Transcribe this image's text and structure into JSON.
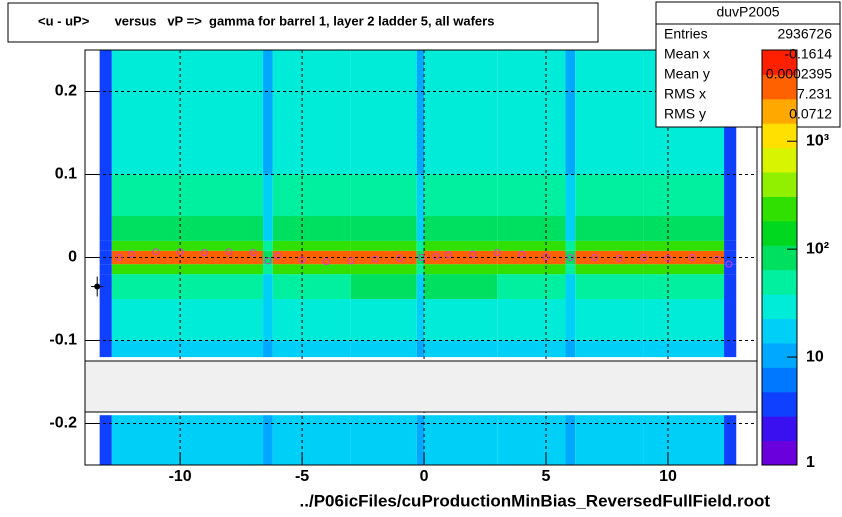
{
  "chart_data": {
    "type": "heatmap",
    "title": "<u - uP>       versus   vP =>  gamma for barrel 1, layer 2 ladder 5, all wafers",
    "x_label": "../P06icFiles/cuProductionMinBias_ReversedFullField.root",
    "xlim": [
      -13.9,
      13.65
    ],
    "ylim": [
      -0.25,
      0.25
    ],
    "xticks": [
      -10,
      -5,
      0,
      5,
      10
    ],
    "yticks": [
      -0.2,
      -0.1,
      0,
      0.1,
      0.2
    ],
    "grid": true,
    "zlim": [
      1,
      7000
    ],
    "zlog": true,
    "zticks": [
      1,
      10,
      {
        "value": 100,
        "label": "10²"
      },
      {
        "value": 1000,
        "label": "10³"
      }
    ],
    "palette": [
      "#6a00dc",
      "#3a10f0",
      "#1040ff",
      "#0078ff",
      "#00a8ff",
      "#00d0f8",
      "#00ecd8",
      "#00f0a0",
      "#00e060",
      "#00d820",
      "#30e000",
      "#90f000",
      "#d8f400",
      "#ffe000",
      "#ffa800",
      "#ff6000",
      "#ff2000"
    ],
    "xbins": [
      -13.3,
      -12.8,
      -10,
      -6.6,
      -6.2,
      -3,
      -0.3,
      0,
      3,
      5.8,
      6.2,
      9,
      12.3,
      12.8
    ],
    "ybins": [
      -0.25,
      -0.19,
      -0.12,
      -0.1,
      -0.05,
      -0.02,
      -0.008,
      0.008,
      0.02,
      0.05,
      0.1,
      0.25
    ],
    "z": [
      [
        3,
        20,
        20,
        12,
        20,
        20,
        12,
        20,
        20,
        12,
        20,
        20,
        3
      ],
      [
        null,
        null,
        null,
        null,
        null,
        null,
        null,
        null,
        null,
        null,
        null,
        null,
        null
      ],
      [
        3,
        20,
        20,
        12,
        20,
        20,
        12,
        20,
        20,
        12,
        20,
        20,
        3
      ],
      [
        3,
        30,
        30,
        15,
        30,
        35,
        15,
        35,
        30,
        15,
        30,
        30,
        3
      ],
      [
        3,
        60,
        60,
        20,
        60,
        80,
        20,
        80,
        60,
        20,
        60,
        60,
        3
      ],
      [
        3,
        300,
        300,
        40,
        300,
        300,
        40,
        300,
        300,
        40,
        300,
        300,
        3
      ],
      [
        3,
        3000,
        3000,
        100,
        3000,
        3000,
        100,
        3000,
        3000,
        100,
        3000,
        3000,
        3
      ],
      [
        3,
        300,
        300,
        40,
        300,
        300,
        40,
        300,
        300,
        40,
        300,
        300,
        3
      ],
      [
        3,
        70,
        70,
        20,
        70,
        80,
        20,
        80,
        70,
        20,
        70,
        70,
        3
      ],
      [
        3,
        40,
        40,
        15,
        40,
        45,
        15,
        45,
        40,
        15,
        40,
        40,
        3
      ],
      [
        3,
        25,
        25,
        12,
        25,
        25,
        12,
        25,
        25,
        12,
        25,
        25,
        3
      ]
    ],
    "profile": {
      "color": "#d040d0",
      "x": [
        -12.5,
        -12,
        -11,
        -10,
        -9,
        -8,
        -7,
        -6.4,
        -6,
        -5,
        -4,
        -3,
        -2,
        -1,
        -0.1,
        0.5,
        1,
        2,
        3,
        4,
        5,
        6,
        7,
        8,
        9,
        10,
        11,
        12,
        12.5
      ],
      "y": [
        0.0,
        0.004,
        0.007,
        0.007,
        0.006,
        0.007,
        0.006,
        -0.004,
        0.002,
        -0.003,
        -0.005,
        -0.004,
        -0.002,
        -0.001,
        0.0,
        0.001,
        0.003,
        0.004,
        0.006,
        0.004,
        0.001,
        0.0,
        0.0,
        -0.001,
        0.0,
        -0.001,
        0.0,
        -0.002,
        -0.008
      ]
    },
    "marker": {
      "x": -13.4,
      "y": -0.035,
      "xerr": 0.25,
      "yerr": 0.012
    },
    "stats": {
      "name": "duvP2005",
      "rows": [
        [
          "Entries",
          "2936726"
        ],
        [
          "Mean x",
          "-0.1614"
        ],
        [
          "Mean y",
          "0.0002395"
        ],
        [
          "RMS x",
          "7.231"
        ],
        [
          "RMS y",
          "0.0712"
        ]
      ]
    }
  }
}
